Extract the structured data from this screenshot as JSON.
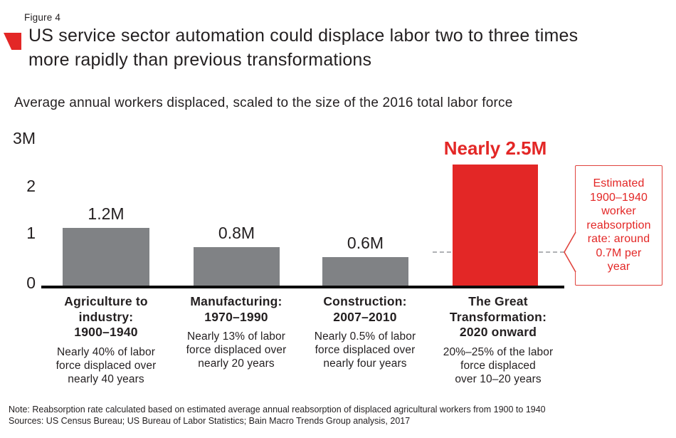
{
  "figure_label": "Figure 4",
  "title_lines": "US service sector automation could displace labor two to three times\nmore rapidly than previous transformations",
  "subtitle": "Average annual workers displaced, scaled to the size of the 2016 total labor force",
  "note": "Note: Reabsorption rate calculated based on estimated average annual reabsorption of displaced agricultural workers from 1900 to 1940",
  "sources": "Sources: US Census Bureau; US Bureau of Labor Statistics; Bain Macro Trends Group analysis, 2017",
  "colors": {
    "bar_gray": "#808285",
    "bar_red": "#e32726",
    "text": "#231f20",
    "reference_line": "#b0b2b5",
    "axis": "#0a0a0a"
  },
  "chart_data": {
    "type": "bar",
    "title": "Average annual workers displaced, scaled to the size of the 2016 total labor force",
    "xlabel": "",
    "ylabel": "",
    "ylim": [
      0,
      3
    ],
    "grid": false,
    "legend": "none",
    "yticks": [
      "3M",
      "2",
      "1",
      "0"
    ],
    "categories": [
      "Agriculture to industry: 1900–1940",
      "Manufacturing: 1970–1990",
      "Construction: 2007–2010",
      "The Great Transformation: 2020 onward"
    ],
    "values": [
      1.2,
      0.8,
      0.6,
      2.5
    ],
    "bars": [
      {
        "category_label": "Agriculture to\nindustry:\n1900–1940",
        "value": 1.2,
        "value_label": "1.2M",
        "description": "Nearly 40% of labor\nforce displaced over\nnearly 40 years",
        "color": "#808285"
      },
      {
        "category_label": "Manufacturing:\n1970–1990",
        "value": 0.8,
        "value_label": "0.8M",
        "description": "Nearly 13% of labor\nforce displaced over\nnearly 20 years",
        "color": "#808285"
      },
      {
        "category_label": "Construction:\n2007–2010",
        "value": 0.6,
        "value_label": "0.6M",
        "description": "Nearly 0.5% of labor\nforce displaced over\nnearly four years",
        "color": "#808285"
      },
      {
        "category_label": "The Great\nTransformation:\n2020 onward",
        "value": 2.5,
        "value_label": "Nearly 2.5M",
        "description": "20%–25% of the labor\nforce displaced\nover 10–20 years",
        "color": "#e32726"
      }
    ],
    "reference_line": {
      "value": 0.7,
      "style": "dashed",
      "annotation": "Estimated\n1900–1940\nworker\nreabsorption\nrate: around\n0.7M per\nyear"
    }
  }
}
